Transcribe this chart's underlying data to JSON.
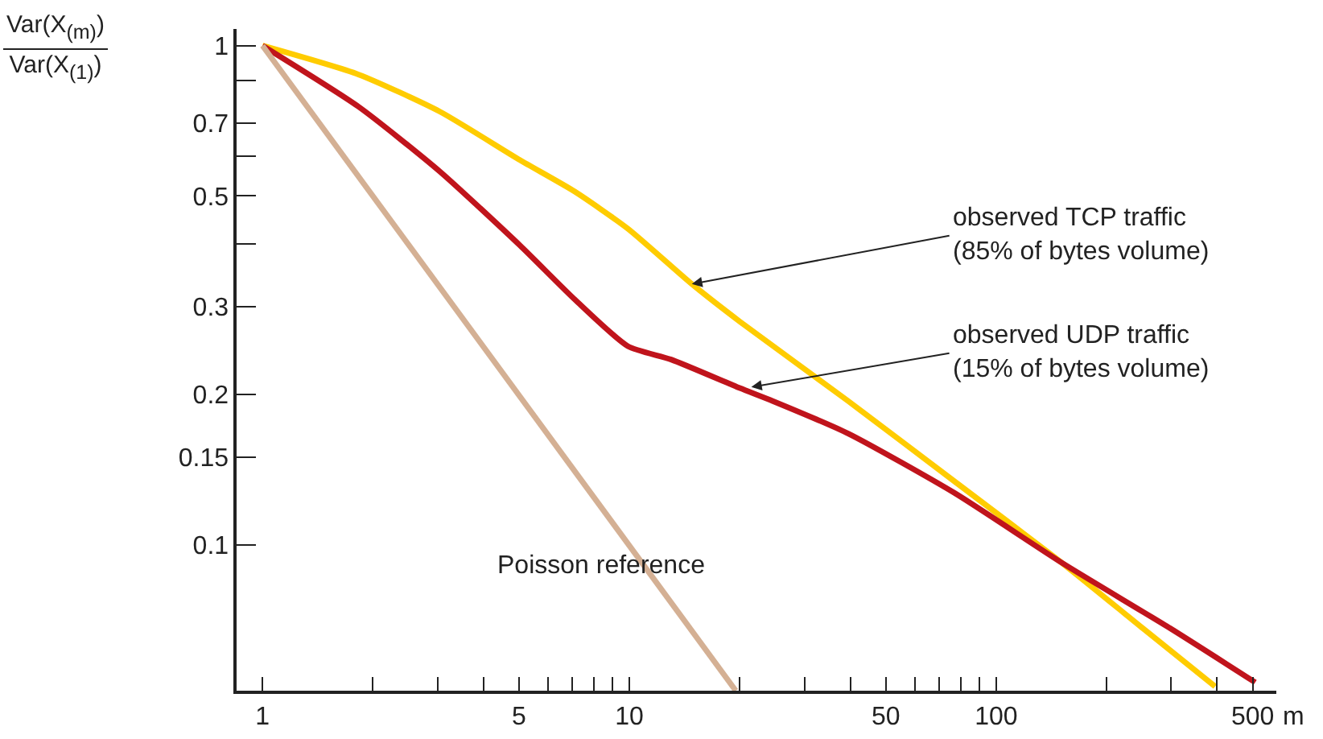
{
  "chart_data": {
    "type": "line",
    "log": "xy",
    "xlabel": "m",
    "ylabel": "Var(X$_{(m)}$)\nVar(X$_{(1)}$)",
    "xlim": [
      0.85,
      580
    ],
    "ylim": [
      0.051,
      1.08
    ],
    "xticks": [
      1,
      {
        "value": 2,
        "label": null
      },
      {
        "value": 3,
        "label": null
      },
      {
        "value": 4,
        "label": null
      },
      5,
      {
        "value": 6,
        "label": null
      },
      {
        "value": 7,
        "label": null
      },
      {
        "value": 8,
        "label": null
      },
      {
        "value": 9,
        "label": null
      },
      10,
      {
        "value": 20,
        "label": null
      },
      {
        "value": 30,
        "label": null
      },
      {
        "value": 40,
        "label": null
      },
      50,
      {
        "value": 60,
        "label": null
      },
      {
        "value": 70,
        "label": null
      },
      {
        "value": 80,
        "label": null
      },
      {
        "value": 90,
        "label": null
      },
      100,
      {
        "value": 200,
        "label": null
      },
      {
        "value": 300,
        "label": null
      },
      {
        "value": 400,
        "label": null
      },
      500
    ],
    "yticks": [
      {
        "value": 0.1,
        "label": "0.1"
      },
      {
        "value": 0.15,
        "label": "0.15"
      },
      {
        "value": 0.2,
        "label": "0.2"
      },
      {
        "value": 0.3,
        "label": "0.3"
      },
      {
        "value": 0.4,
        "label": null
      },
      {
        "value": 0.5,
        "label": "0.5"
      },
      {
        "value": 0.6,
        "label": null
      },
      {
        "value": 0.7,
        "label": "0.7"
      },
      {
        "value": 0.85,
        "label": null
      },
      1
    ],
    "series": [
      {
        "color": "#ffcc00",
        "x": [
          1,
          1.83,
          3.04,
          5.03,
          7.1,
          9.9,
          14.8,
          20,
          39.5,
          76.9,
          151,
          251,
          395
        ],
        "values": [
          1,
          0.875,
          0.738,
          0.59,
          0.51,
          0.43,
          0.333,
          0.28,
          0.194,
          0.134,
          0.092,
          0.068,
          0.052
        ]
      },
      {
        "color": "#c0141c",
        "x": [
          1,
          1.83,
          3.04,
          5.03,
          7.1,
          9.9,
          13,
          20,
          24.6,
          39.5,
          76.9,
          151,
          298,
          508
        ],
        "values": [
          1,
          0.754,
          0.56,
          0.398,
          0.31,
          0.25,
          0.235,
          0.206,
          0.194,
          0.167,
          0.127,
          0.092,
          0.068,
          0.053
        ]
      },
      {
        "color": "#d4b094",
        "x": [
          1,
          19.5
        ],
        "values": [
          1,
          0.051
        ]
      }
    ],
    "annotations": [
      {
        "text": "observed TCP traffic\n(85% of bytes volume)",
        "x": 14.8,
        "y": 0.333
      },
      {
        "text": "observed UDP traffic\n(15% of bytes volume)",
        "x": 21.5,
        "y": 0.207
      },
      "Poisson reference"
    ]
  }
}
